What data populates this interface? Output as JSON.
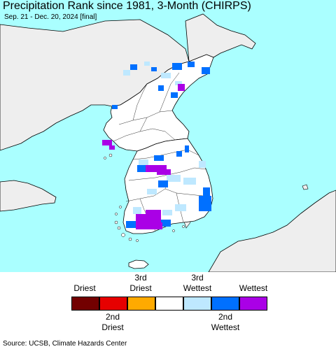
{
  "header": {
    "title": "Precipitation Rank since 1981, 3-Month (CHIRPS)",
    "subtitle": "Sep. 21 - Dec. 20, 2024 [final]"
  },
  "map": {
    "colors": {
      "sea": "#aaffff",
      "land_inside": "#ffffff",
      "land_outside": "#eeeeee",
      "border": "#000000"
    }
  },
  "legend": {
    "top_labels": [
      {
        "line1": "Driest",
        "line2": ""
      },
      {
        "line1": "3rd",
        "line2": "Driest"
      },
      {
        "line1": "3rd",
        "line2": "Wettest"
      },
      {
        "line1": "Wettest",
        "line2": ""
      }
    ],
    "bottom_labels": [
      {
        "line1": "2nd",
        "line2": "Driest"
      },
      {
        "line1": "2nd",
        "line2": "Wettest"
      }
    ],
    "swatches": [
      {
        "name": "driest",
        "color": "#730000"
      },
      {
        "name": "2nd-driest",
        "color": "#e60000"
      },
      {
        "name": "3rd-driest",
        "color": "#ffaa00"
      },
      {
        "name": "normal",
        "color": "#ffffff"
      },
      {
        "name": "3rd-wettest",
        "color": "#bee8ff"
      },
      {
        "name": "2nd-wettest",
        "color": "#0070ff"
      },
      {
        "name": "wettest",
        "color": "#aa00e6"
      }
    ]
  },
  "footer": {
    "source": "Source: UCSB, Climate Hazards Center"
  }
}
